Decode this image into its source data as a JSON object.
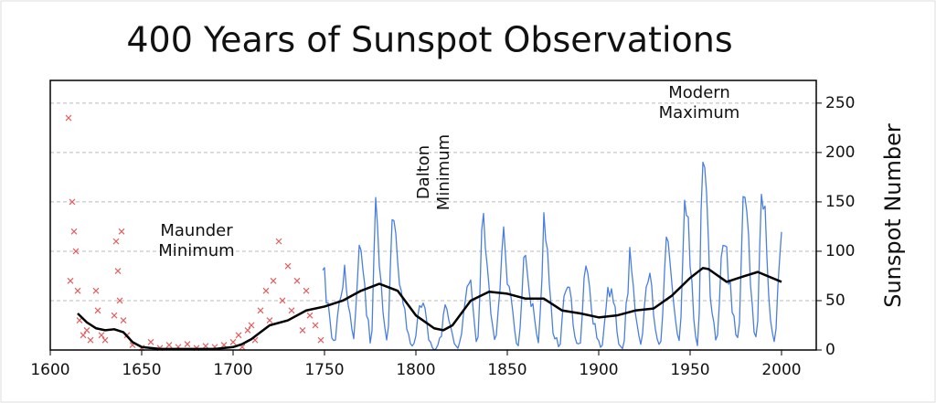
{
  "chart_data": {
    "type": "line",
    "title": "400 Years of Sunspot Observations",
    "y_label": "Sunspot Number",
    "xlim": [
      1600,
      2019
    ],
    "ylim": [
      0,
      273
    ],
    "xticks": [
      1600,
      1650,
      1700,
      1750,
      1800,
      1850,
      1900,
      1950,
      2000
    ],
    "yticks": [
      0,
      50,
      100,
      150,
      200,
      250
    ],
    "grid": true,
    "annotations": [
      {
        "lines": [
          "Maunder",
          "Minimum"
        ],
        "x": 1680,
        "y": 110
      },
      {
        "lines": [
          "Dalton",
          "Minimum"
        ],
        "x": 1810,
        "y": 180,
        "rotated": true
      },
      {
        "lines": [
          "Modern",
          "Maximum"
        ],
        "x": 1955,
        "y": 250
      }
    ],
    "series": [
      {
        "type": "scatter",
        "color": "#e06060",
        "x": [
          1610,
          1611,
          1612,
          1613,
          1614,
          1615,
          1616,
          1618,
          1620,
          1622,
          1625,
          1626,
          1628,
          1630,
          1635,
          1636,
          1637,
          1638,
          1639,
          1640,
          1642,
          1645,
          1650,
          1655,
          1660,
          1665,
          1670,
          1675,
          1680,
          1685,
          1690,
          1695,
          1700,
          1703,
          1705,
          1708,
          1710,
          1712,
          1715,
          1718,
          1720,
          1722,
          1725,
          1727,
          1730,
          1732,
          1735,
          1738,
          1740,
          1742,
          1745,
          1748
        ],
        "y": [
          235,
          70,
          150,
          120,
          100,
          60,
          30,
          15,
          20,
          10,
          60,
          40,
          15,
          10,
          35,
          110,
          80,
          50,
          120,
          30,
          15,
          5,
          2,
          8,
          2,
          5,
          3,
          6,
          2,
          4,
          3,
          5,
          8,
          15,
          3,
          20,
          25,
          10,
          40,
          60,
          30,
          70,
          110,
          50,
          85,
          40,
          70,
          20,
          60,
          35,
          25,
          10
        ]
      },
      {
        "type": "line",
        "color": "#4a7fe0",
        "width": 1.3,
        "x": [
          1749,
          1750,
          1751,
          1752,
          1753,
          1754,
          1755,
          1756,
          1757,
          1758,
          1759,
          1760,
          1761,
          1762,
          1763,
          1764,
          1765,
          1766,
          1767,
          1768,
          1769,
          1770,
          1771,
          1772,
          1773,
          1774,
          1775,
          1776,
          1777,
          1778,
          1779,
          1780,
          1781,
          1782,
          1783,
          1784,
          1785,
          1786,
          1787,
          1788,
          1789,
          1790,
          1791,
          1792,
          1793,
          1794,
          1795,
          1796,
          1797,
          1798,
          1799,
          1800,
          1801,
          1802,
          1803,
          1804,
          1805,
          1806,
          1807,
          1808,
          1809,
          1810,
          1811,
          1812,
          1813,
          1814,
          1815,
          1816,
          1817,
          1818,
          1819,
          1820,
          1821,
          1822,
          1823,
          1824,
          1825,
          1826,
          1827,
          1828,
          1829,
          1830,
          1831,
          1832,
          1833,
          1834,
          1835,
          1836,
          1837,
          1838,
          1839,
          1840,
          1841,
          1842,
          1843,
          1844,
          1845,
          1846,
          1847,
          1848,
          1849,
          1850,
          1851,
          1852,
          1853,
          1854,
          1855,
          1856,
          1857,
          1858,
          1859,
          1860,
          1861,
          1862,
          1863,
          1864,
          1865,
          1866,
          1867,
          1868,
          1869,
          1870,
          1871,
          1872,
          1873,
          1874,
          1875,
          1876,
          1877,
          1878,
          1879,
          1880,
          1881,
          1882,
          1883,
          1884,
          1885,
          1886,
          1887,
          1888,
          1889,
          1890,
          1891,
          1892,
          1893,
          1894,
          1895,
          1896,
          1897,
          1898,
          1899,
          1900,
          1901,
          1902,
          1903,
          1904,
          1905,
          1906,
          1907,
          1908,
          1909,
          1910,
          1911,
          1912,
          1913,
          1914,
          1915,
          1916,
          1917,
          1918,
          1919,
          1920,
          1921,
          1922,
          1923,
          1924,
          1925,
          1926,
          1927,
          1928,
          1929,
          1930,
          1931,
          1932,
          1933,
          1934,
          1935,
          1936,
          1937,
          1938,
          1939,
          1940,
          1941,
          1942,
          1943,
          1944,
          1945,
          1946,
          1947,
          1948,
          1949,
          1950,
          1951,
          1952,
          1953,
          1954,
          1955,
          1956,
          1957,
          1958,
          1959,
          1960,
          1961,
          1962,
          1963,
          1964,
          1965,
          1966,
          1967,
          1968,
          1969,
          1970,
          1971,
          1972,
          1973,
          1974,
          1975,
          1976,
          1977,
          1978,
          1979,
          1980,
          1981,
          1982,
          1983,
          1984,
          1985,
          1986,
          1987,
          1988,
          1989,
          1990,
          1991,
          1992,
          1993,
          1994,
          1995,
          1996,
          1997,
          1998,
          1999,
          2000
        ],
        "y": [
          80.9,
          83.4,
          47.7,
          47.8,
          30.7,
          12.2,
          9.6,
          10.2,
          32.4,
          47.6,
          54.0,
          62.9,
          85.9,
          61.2,
          45.1,
          36.4,
          20.9,
          11.4,
          37.8,
          69.8,
          106.1,
          100.8,
          81.6,
          66.5,
          34.8,
          30.6,
          7.0,
          19.8,
          92.5,
          154.4,
          125.9,
          84.8,
          68.1,
          38.5,
          22.8,
          10.2,
          24.1,
          82.9,
          132.0,
          130.9,
          118.1,
          89.9,
          66.6,
          60.0,
          46.9,
          41.0,
          21.3,
          16.0,
          6.4,
          4.1,
          6.8,
          14.5,
          34.0,
          45.0,
          43.1,
          47.5,
          42.2,
          28.1,
          10.1,
          8.1,
          2.5,
          0.0,
          1.4,
          5.0,
          12.2,
          13.9,
          35.4,
          45.8,
          41.1,
          30.1,
          23.9,
          15.6,
          6.6,
          4.0,
          1.8,
          8.5,
          16.6,
          36.3,
          49.6,
          64.2,
          67.0,
          70.9,
          47.8,
          27.5,
          8.5,
          13.2,
          56.9,
          121.5,
          138.3,
          103.2,
          85.7,
          64.6,
          36.7,
          24.2,
          10.7,
          15.0,
          40.1,
          61.5,
          98.5,
          124.7,
          96.3,
          66.6,
          64.5,
          54.1,
          39.0,
          20.6,
          6.7,
          4.3,
          22.7,
          54.8,
          93.8,
          95.8,
          77.2,
          59.1,
          44.0,
          47.0,
          30.5,
          16.3,
          7.3,
          37.6,
          74.0,
          139.0,
          111.2,
          101.6,
          66.2,
          44.7,
          17.0,
          11.3,
          12.4,
          3.4,
          6.0,
          32.3,
          54.3,
          59.7,
          63.7,
          63.5,
          52.2,
          25.4,
          13.1,
          6.8,
          6.3,
          7.1,
          35.6,
          73.0,
          85.1,
          78.0,
          64.0,
          41.8,
          26.2,
          26.7,
          12.1,
          9.5,
          2.7,
          5.0,
          24.4,
          42.0,
          63.5,
          53.8,
          62.0,
          48.5,
          43.9,
          18.6,
          5.7,
          3.6,
          1.4,
          9.6,
          47.4,
          57.1,
          103.9,
          80.6,
          63.6,
          37.6,
          26.1,
          14.2,
          5.8,
          16.7,
          44.3,
          63.9,
          69.0,
          77.8,
          64.9,
          35.7,
          21.2,
          11.1,
          5.7,
          8.7,
          36.1,
          79.7,
          114.4,
          109.6,
          88.8,
          67.8,
          47.5,
          30.6,
          16.3,
          9.6,
          33.2,
          92.6,
          151.6,
          136.3,
          134.7,
          83.9,
          69.4,
          31.5,
          13.9,
          4.4,
          38.0,
          141.7,
          190.2,
          184.8,
          159.0,
          112.3,
          53.9,
          37.6,
          27.9,
          10.2,
          15.1,
          47.0,
          93.8,
          105.9,
          105.5,
          104.5,
          66.6,
          68.9,
          38.0,
          34.5,
          15.5,
          12.6,
          27.5,
          92.5,
          155.4,
          154.6,
          140.4,
          115.9,
          66.6,
          45.9,
          17.9,
          13.4,
          29.4,
          100.2,
          157.6,
          142.6,
          145.7,
          94.3,
          54.6,
          29.9,
          17.5,
          8.6,
          21.5,
          64.3,
          93.3,
          119.6
        ]
      },
      {
        "type": "line",
        "color": "#000000",
        "width": 2.5,
        "x": [
          1615,
          1620,
          1625,
          1630,
          1635,
          1640,
          1645,
          1650,
          1660,
          1670,
          1680,
          1690,
          1700,
          1705,
          1710,
          1715,
          1720,
          1730,
          1740,
          1750,
          1760,
          1770,
          1780,
          1790,
          1800,
          1810,
          1815,
          1820,
          1830,
          1840,
          1850,
          1860,
          1870,
          1880,
          1890,
          1900,
          1910,
          1920,
          1930,
          1940,
          1950,
          1957,
          1960,
          1970,
          1980,
          1987,
          2000
        ],
        "y": [
          37,
          28,
          22,
          20,
          21,
          18,
          8,
          3,
          1,
          1,
          1,
          1,
          3,
          6,
          11,
          18,
          25,
          30,
          40,
          44,
          50,
          60,
          67,
          60,
          35,
          22,
          20,
          25,
          50,
          59,
          57,
          52,
          52,
          40,
          37,
          33,
          35,
          40,
          42,
          55,
          73,
          83,
          82,
          69,
          75,
          79,
          69
        ]
      }
    ]
  }
}
